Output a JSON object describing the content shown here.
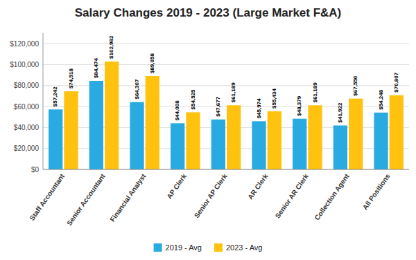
{
  "chart_data": {
    "type": "bar",
    "title": "Salary Changes 2019 - 2023 (Large Market F&A)",
    "categories": [
      "Staff Accountant",
      "Senior Accountant",
      "Financial Analyst",
      "AP Clerk",
      "Senior AP Clerk",
      "AR Clerk",
      "Senior AR Clerk",
      "Collection Agent",
      "All Positions"
    ],
    "series": [
      {
        "name": "2019 - Avg",
        "color": "#29ABE2",
        "values": [
          57242,
          84474,
          64307,
          44008,
          47677,
          45974,
          48379,
          41922,
          54248
        ],
        "value_labels": [
          "$57,242",
          "$84,474",
          "$64,307",
          "$44,008",
          "$47,677",
          "$45,974",
          "$48,379",
          "$41,922",
          "$54,248"
        ]
      },
      {
        "name": "2023 - Avg",
        "color": "#FFC20E",
        "values": [
          74518,
          102982,
          89058,
          54525,
          61189,
          55434,
          61189,
          67550,
          70807
        ],
        "value_labels": [
          "$74,518",
          "$102,982",
          "$89,058",
          "$54,525",
          "$61,189",
          "$55,434",
          "$61,189",
          "$67,550",
          "$70,807"
        ]
      }
    ],
    "ylim": [
      0,
      130000
    ],
    "yticks": [
      {
        "value": 0,
        "label": "$0"
      },
      {
        "value": 20000,
        "label": "$20,000"
      },
      {
        "value": 40000,
        "label": "$40,000"
      },
      {
        "value": 60000,
        "label": "$60,000"
      },
      {
        "value": 80000,
        "label": "$80,000"
      },
      {
        "value": 100000,
        "label": "$100,000"
      },
      {
        "value": 120000,
        "label": "$120,000"
      }
    ],
    "grid": true,
    "data_labels": true,
    "legend": "bottom"
  }
}
